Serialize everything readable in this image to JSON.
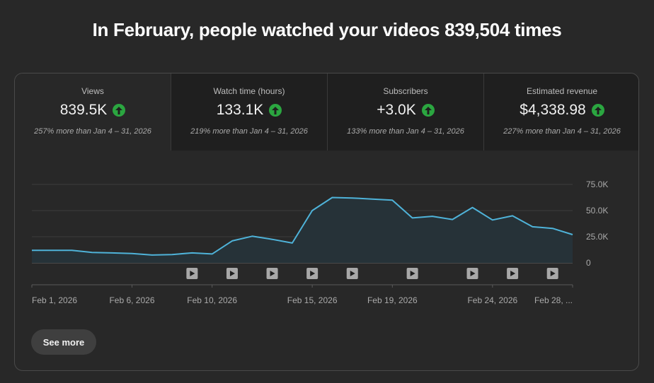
{
  "headline": "In February, people watched your videos 839,504 times",
  "metrics": [
    {
      "label": "Views",
      "value": "839.5K",
      "compare": "257% more than Jan 4 – 31, 2026",
      "icon": "arrow-up-icon"
    },
    {
      "label": "Watch time (hours)",
      "value": "133.1K",
      "compare": "219% more than Jan 4 – 31, 2026",
      "icon": "arrow-up-icon"
    },
    {
      "label": "Subscribers",
      "value": "+3.0K",
      "compare": "133% more than Jan 4 – 31, 2026",
      "icon": "arrow-up-icon"
    },
    {
      "label": "Estimated revenue",
      "value": "$4,338.98",
      "compare": "227% more than Jan 4 – 31, 2026",
      "icon": "arrow-up-icon"
    }
  ],
  "chart_data": {
    "type": "area",
    "x": [
      "Feb 1, 2026",
      "Feb 2",
      "Feb 3",
      "Feb 4",
      "Feb 5",
      "Feb 6",
      "Feb 7",
      "Feb 8",
      "Feb 9",
      "Feb 10",
      "Feb 11",
      "Feb 12",
      "Feb 13",
      "Feb 14",
      "Feb 15",
      "Feb 16",
      "Feb 17",
      "Feb 18",
      "Feb 19",
      "Feb 20",
      "Feb 21",
      "Feb 22",
      "Feb 23",
      "Feb 24",
      "Feb 25",
      "Feb 26",
      "Feb 27",
      "Feb 28"
    ],
    "series": [
      {
        "values": [
          12000,
          12000,
          12000,
          10000,
          9500,
          9000,
          7500,
          8000,
          9500,
          8500,
          21000,
          25500,
          22500,
          19000,
          50000,
          62500,
          62000,
          61000,
          60000,
          43000,
          44500,
          41500,
          53000,
          41000,
          45000,
          34500,
          33000,
          27000
        ]
      }
    ],
    "x_tick_labels": [
      "Feb 1, 2026",
      "Feb 6, 2026",
      "Feb 10, 2026",
      "Feb 15, 2026",
      "Feb 19, 2026",
      "Feb 24, 2026",
      "Feb 28, ..."
    ],
    "y_ticks": [
      "75.0K",
      "50.0K",
      "25.0K",
      "0"
    ],
    "ylim": [
      0,
      75000
    ],
    "grid": true,
    "line_color": "#4fb3d9",
    "fill_color": "#263238",
    "video_markers_on": [
      "Feb 9",
      "Feb 11",
      "Feb 13",
      "Feb 15",
      "Feb 17",
      "Feb 20",
      "Feb 23",
      "Feb 25",
      "Feb 27"
    ],
    "video_marker_icon": "play-icon"
  },
  "see_more": "See more",
  "colors": {
    "accent_up": "#2ba640",
    "background": "#282828",
    "panel": "#1f1f1f"
  }
}
